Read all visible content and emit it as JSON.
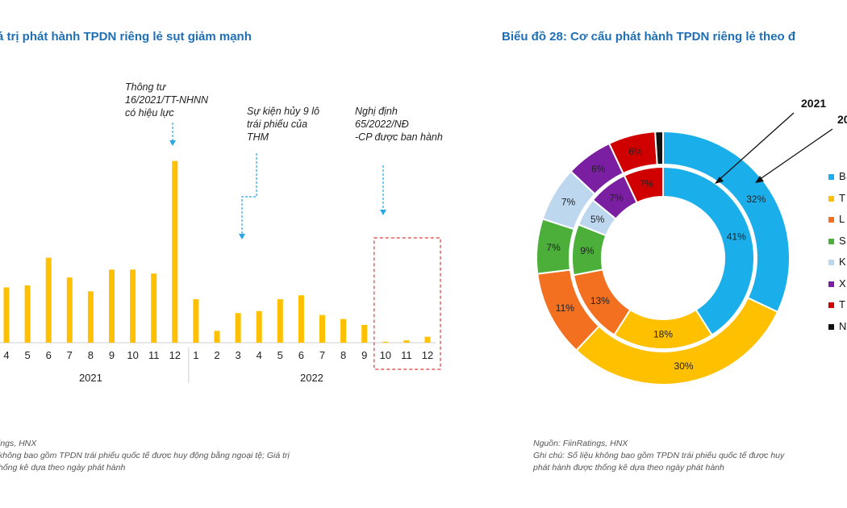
{
  "left_chart": {
    "title": "á trị phát hành TPDN riêng lẻ sụt giảm mạnh",
    "annotations": [
      {
        "id": "thong-tu",
        "text": "Thông tư\n16/2021/TT-NHNN\ncó hiệu lực"
      },
      {
        "id": "su-kien",
        "text": "Sự kiện hủy 9 lô\ntrái phiếu của\nTHM"
      },
      {
        "id": "nghi-dinh",
        "text": "Nghị định\n65/2022/NĐ\n-CP được ban hành"
      }
    ],
    "source": "ings, HNX",
    "note": "không bao gồm TPDN trái phiếu quốc tế được huy động bằng ngoại tệ; Giá trị\nhống kê dựa theo ngày phát hành"
  },
  "right_chart": {
    "title": "Biểu đồ 28: Cơ cấu phát hành TPDN riêng lẻ theo đ",
    "source": "Nguồn: FiinRatings, HNX",
    "note": "Ghi chú: Số liệu không bao gồm TPDN trái phiếu quốc tế được huy\nphát hành được thống kê dựa theo ngày phát hành",
    "ring_label_2021": "2021",
    "ring_label_2022": "20",
    "legend": [
      "B",
      "T",
      "L",
      "S",
      "K",
      "X",
      "T",
      "N"
    ]
  },
  "chart_data": [
    {
      "type": "bar",
      "title": "á trị phát hành TPDN riêng lẻ sụt giảm mạnh",
      "categories": [
        "4",
        "5",
        "6",
        "7",
        "8",
        "9",
        "10",
        "11",
        "12",
        "1",
        "2",
        "3",
        "4",
        "5",
        "6",
        "7",
        "8",
        "9",
        "10",
        "11",
        "12"
      ],
      "groups": [
        {
          "label": "2021",
          "from": 0,
          "to": 8
        },
        {
          "label": "2022",
          "from": 9,
          "to": 20
        }
      ],
      "values": [
        28,
        29,
        43,
        33,
        26,
        37,
        37,
        35,
        92,
        22,
        6,
        15,
        16,
        22,
        24,
        14,
        12,
        9,
        0.5,
        1.2,
        3
      ],
      "ylim": [
        0,
        100
      ],
      "color": "#FFC000",
      "highlight": {
        "from": 18,
        "to": 20,
        "color": "#E03A3A"
      }
    },
    {
      "type": "pie",
      "subtype": "double-donut",
      "colors": [
        "#1AAEEA",
        "#FFC000",
        "#F37021",
        "#4CAF3A",
        "#BDD7EE",
        "#7B1FA2",
        "#D00000",
        "#111111"
      ],
      "inner_2021": {
        "labels": [
          "41%",
          "18%",
          "13%",
          "9%",
          "5%",
          "7%",
          "7%",
          ""
        ],
        "values": [
          41,
          18,
          13,
          9,
          5,
          7,
          7,
          0
        ]
      },
      "outer_2022": {
        "labels": [
          "32%",
          "30%",
          "11%",
          "7%",
          "7%",
          "6%",
          "6%",
          ""
        ],
        "values": [
          32,
          30,
          11,
          7,
          7,
          6,
          6,
          1
        ]
      }
    }
  ]
}
